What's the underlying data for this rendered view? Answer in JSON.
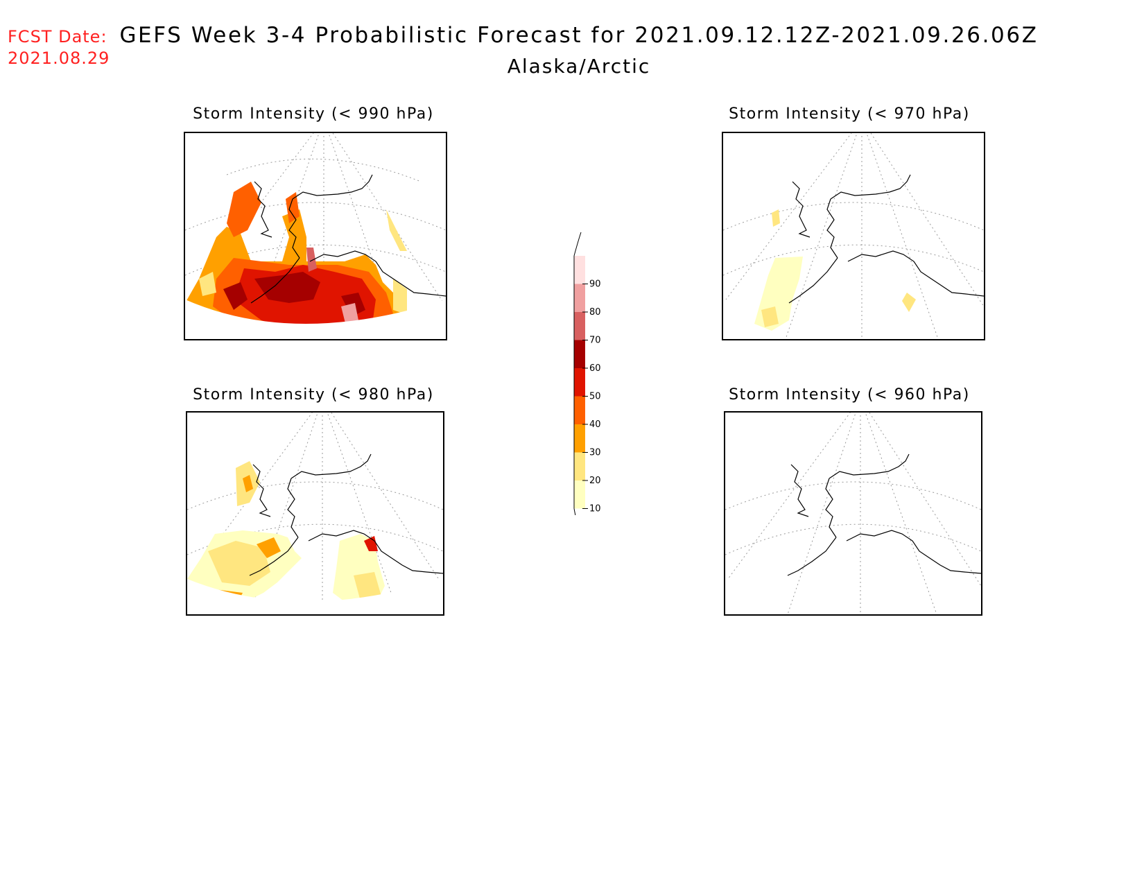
{
  "header": {
    "fcst_label": "FCST Date:",
    "fcst_date": "2021.08.29",
    "title": "GEFS Week 3-4 Probabilistic Forecast for 2021.09.12.12Z-2021.09.26.06Z",
    "region": "Alaska/Arctic"
  },
  "panels": [
    {
      "id": "p990",
      "title": "Storm Intensity (< 990 hPa)",
      "coverage": "high"
    },
    {
      "id": "p980",
      "title": "Storm Intensity (< 980 hPa)",
      "coverage": "low"
    },
    {
      "id": "p970",
      "title": "Storm Intensity (< 970 hPa)",
      "coverage": "minimal"
    },
    {
      "id": "p960",
      "title": "Storm Intensity (< 960 hPa)",
      "coverage": "none"
    }
  ],
  "colorbar": {
    "levels": [
      "10",
      "20",
      "30",
      "40",
      "50",
      "60",
      "70",
      "80",
      "90"
    ],
    "colors": [
      "#ffffc0",
      "#ffe680",
      "#ffa000",
      "#ff6000",
      "#e01400",
      "#a50000",
      "#d86060",
      "#f0a0a0",
      "#ffe0e0"
    ]
  }
}
